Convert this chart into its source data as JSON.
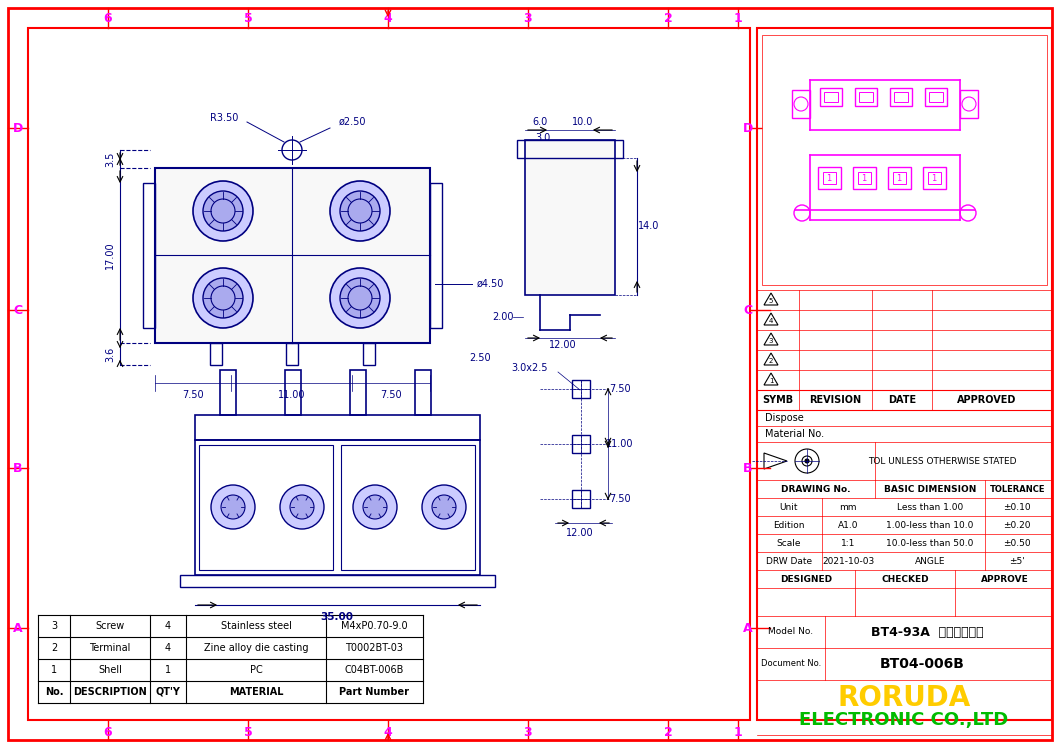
{
  "bg_color": "#ffffff",
  "border_color": "#ff0000",
  "draw_color": "#000080",
  "magenta_color": "#ff00ff",
  "yellow_color": "#ffcc00",
  "green_color": "#00bb00",
  "model_no": "BT4-93A",
  "model_chinese": "四位单排端子",
  "doc_no": "BT04-006B",
  "company1": "RORUDA",
  "company2": "ELECTRONIC CO.,LTD",
  "parts_table": {
    "headers": [
      "No.",
      "DESCRIPTION",
      "QT'Y",
      "MATERIAL",
      "Part Number"
    ],
    "rows": [
      [
        "3",
        "Screw",
        "4",
        "Stainless steel",
        "M4xP0.70-9.0"
      ],
      [
        "2",
        "Terminal",
        "4",
        "Zine alloy die casting",
        "T0002BT-03"
      ],
      [
        "1",
        "Shell",
        "1",
        "PC",
        "C04BT-006B"
      ]
    ]
  },
  "title_block": {
    "symb_header": [
      "SYMB",
      "REVISION",
      "DATE",
      "APPROVED"
    ],
    "dispose": "Dispose",
    "material_no": "Material No.",
    "tol_text": "TOL UNLESS OTHERWISE STATED",
    "drawing_no": "DRAWING No.",
    "basic_dim": "BASIC DIMENSION",
    "tolerance": "TOLERANCE",
    "rows": [
      [
        "Unit",
        "mm",
        "Less than 1.00",
        "±0.10"
      ],
      [
        "Edition",
        "A1.0",
        "1.00-less than 10.0",
        "±0.20"
      ],
      [
        "Scale",
        "1:1",
        "10.0-less than 50.0",
        "±0.50"
      ],
      [
        "DRW Date",
        "2021-10-03",
        "ANGLE",
        "±5'"
      ]
    ],
    "footer": [
      "DESIGNED",
      "CHECKED",
      "APPROVE"
    ]
  }
}
